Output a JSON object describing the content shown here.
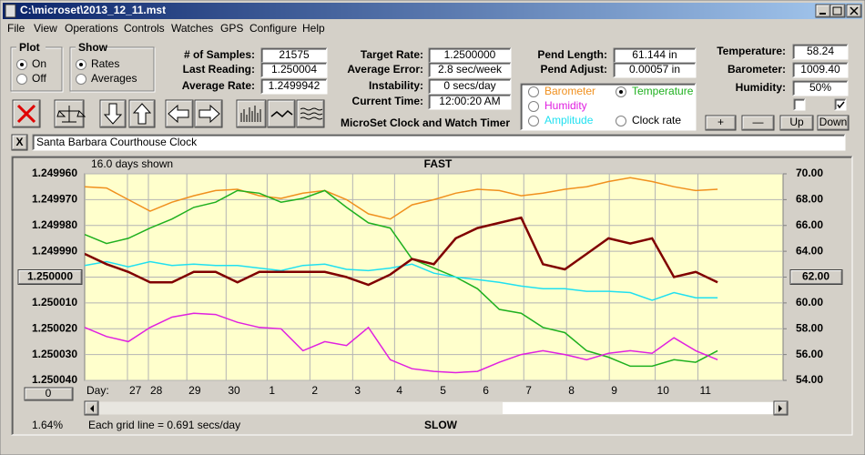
{
  "window": {
    "title": "C:\\microset\\2013_12_11.mst"
  },
  "menu": [
    "File",
    "View",
    "Operations",
    "Controls",
    "Watches",
    "GPS",
    "Configure",
    "Help"
  ],
  "plot_group": {
    "title": "Plot",
    "options": [
      "On",
      "Off"
    ]
  },
  "show_group": {
    "title": "Show",
    "options": [
      "Rates",
      "Averages"
    ]
  },
  "fields": [
    {
      "label": "# of Samples:",
      "value": "21575"
    },
    {
      "label": "Last Reading:",
      "value": "1.250004"
    },
    {
      "label": "Average Rate:",
      "value": "1.2499942"
    },
    {
      "label": "Target Rate:",
      "value": "1.2500000"
    },
    {
      "label": "Average Error:",
      "value": "2.8 sec/week"
    },
    {
      "label": "Instability:",
      "value": "0 secs/day"
    },
    {
      "label": "Current Time:",
      "value": "12:00:20 AM"
    },
    {
      "label": "Pend Length:",
      "value": "61.144 in"
    },
    {
      "label": "Pend Adjust:",
      "value": "0.00057 in"
    },
    {
      "label": "Temperature:",
      "value": "58.24"
    },
    {
      "label": "Barometer:",
      "value": "1009.40"
    },
    {
      "label": "Humidity:",
      "value": "50%"
    }
  ],
  "app_name": "MicroSet Clock and Watch Timer",
  "buttons": [
    "+",
    "—",
    "Up",
    "Down"
  ],
  "close_label": "X",
  "clock_name": "Santa Barbara Courthouse Clock",
  "chart_data": {
    "type": "line",
    "days_shown": "16.0 days shown",
    "top_label": "FAST",
    "bottom_label": "SLOW",
    "zoom": "1.64%",
    "grid_note": "Each grid line = 0.691 secs/day",
    "x_label": "Day:",
    "offset_button": "0",
    "grid": true,
    "xlim": [
      0,
      16
    ],
    "xticks": [
      {
        "value": 0.98,
        "label": "27"
      },
      {
        "value": 1.46,
        "label": "28"
      },
      {
        "value": 2.34,
        "label": "29"
      },
      {
        "value": 3.24,
        "label": "30"
      },
      {
        "value": 4.18,
        "label": "1"
      },
      {
        "value": 5.16,
        "label": "2"
      },
      {
        "value": 6.14,
        "label": "3"
      },
      {
        "value": 7.1,
        "label": "4"
      },
      {
        "value": 8.1,
        "label": "5"
      },
      {
        "value": 9.08,
        "label": "6"
      },
      {
        "value": 10.06,
        "label": "7"
      },
      {
        "value": 11.04,
        "label": "8"
      },
      {
        "value": 12.02,
        "label": "9"
      },
      {
        "value": 13.07,
        "label": "10"
      },
      {
        "value": 14.05,
        "label": "11"
      }
    ],
    "ylim": [
      1.25004,
      1.24996
    ],
    "yticks": [
      {
        "value": 1.24996,
        "label": "1.249960"
      },
      {
        "value": 1.24997,
        "label": "1.249970"
      },
      {
        "value": 1.24998,
        "label": "1.249980"
      },
      {
        "value": 1.24999,
        "label": "1.249990"
      },
      {
        "value": 1.25,
        "label": "1.250000"
      },
      {
        "value": 1.25001,
        "label": "1.250010"
      },
      {
        "value": 1.25002,
        "label": "1.250020"
      },
      {
        "value": 1.25003,
        "label": "1.250030"
      },
      {
        "value": 1.25004,
        "label": "1.250040"
      }
    ],
    "y2lim": [
      54,
      70
    ],
    "y2ticks": [
      {
        "value": 70,
        "label": "70.00"
      },
      {
        "value": 68,
        "label": "68.00"
      },
      {
        "value": 66,
        "label": "66.00"
      },
      {
        "value": 64,
        "label": "64.00"
      },
      {
        "value": 62,
        "label": "62.00"
      },
      {
        "value": 60,
        "label": "60.00"
      },
      {
        "value": 58,
        "label": "58.00"
      },
      {
        "value": 56,
        "label": "56.00"
      },
      {
        "value": 54,
        "label": "54.00"
      }
    ],
    "x": [
      0,
      0.5,
      1,
      1.5,
      2,
      2.5,
      3,
      3.5,
      4,
      4.5,
      5,
      5.5,
      6,
      6.5,
      7,
      7.5,
      8,
      8.5,
      9,
      9.5,
      10,
      10.5,
      11,
      11.5,
      12,
      12.5,
      13,
      13.5,
      14,
      14.5
    ],
    "series": [
      {
        "name": "Barometer",
        "color": "#f0901e",
        "axis": "y2",
        "values": [
          69.0,
          68.9,
          68.0,
          67.1,
          67.8,
          68.3,
          68.7,
          68.8,
          68.3,
          68.1,
          68.5,
          68.7,
          68.0,
          66.9,
          66.5,
          67.6,
          68.0,
          68.5,
          68.8,
          68.7,
          68.3,
          68.5,
          68.8,
          69.0,
          69.4,
          69.7,
          69.4,
          69.0,
          68.7,
          68.8
        ]
      },
      {
        "name": "Temperature",
        "color": "#1fb01f",
        "axis": "y2",
        "values": [
          65.3,
          64.6,
          65.0,
          65.8,
          66.5,
          67.4,
          67.8,
          68.7,
          68.5,
          67.8,
          68.1,
          68.7,
          67.4,
          66.2,
          65.8,
          63.4,
          62.7,
          62.0,
          61.1,
          59.5,
          59.2,
          58.1,
          57.7,
          56.3,
          55.8,
          55.1,
          55.1,
          55.6,
          55.4,
          56.3
        ]
      },
      {
        "name": "Humidity",
        "color": "#e020e0",
        "axis": "y2",
        "values": [
          58.1,
          57.4,
          57.0,
          58.1,
          58.9,
          59.2,
          59.1,
          58.5,
          58.1,
          58.0,
          56.3,
          57.0,
          56.7,
          58.1,
          55.6,
          54.9,
          54.7,
          54.6,
          54.7,
          55.4,
          56.0,
          56.3,
          56.0,
          55.6,
          56.1,
          56.3,
          56.1,
          57.3,
          56.3,
          55.6
        ]
      },
      {
        "name": "Amplitude",
        "color": "#20e0f0",
        "axis": "y2",
        "values": [
          62.9,
          63.2,
          62.8,
          63.2,
          62.9,
          63.0,
          62.9,
          62.9,
          62.7,
          62.5,
          62.9,
          63.0,
          62.6,
          62.5,
          62.7,
          63.0,
          62.3,
          62.0,
          61.8,
          61.6,
          61.3,
          61.1,
          61.1,
          60.9,
          60.9,
          60.8,
          60.2,
          60.8,
          60.4,
          60.4
        ]
      },
      {
        "name": "Clock rate",
        "color": "#800000",
        "values": [
          1.249991,
          1.249995,
          1.249998,
          1.250002,
          1.250002,
          1.249998,
          1.249998,
          1.250002,
          1.249998,
          1.249998,
          1.249998,
          1.249998,
          1.25,
          1.250003,
          1.249999,
          1.249993,
          1.249995,
          1.249985,
          1.249981,
          1.249979,
          1.249977,
          1.249995,
          1.249997,
          1.249991,
          1.249985,
          1.249987,
          1.249985,
          1.25,
          1.249998,
          1.250002
        ]
      }
    ]
  }
}
